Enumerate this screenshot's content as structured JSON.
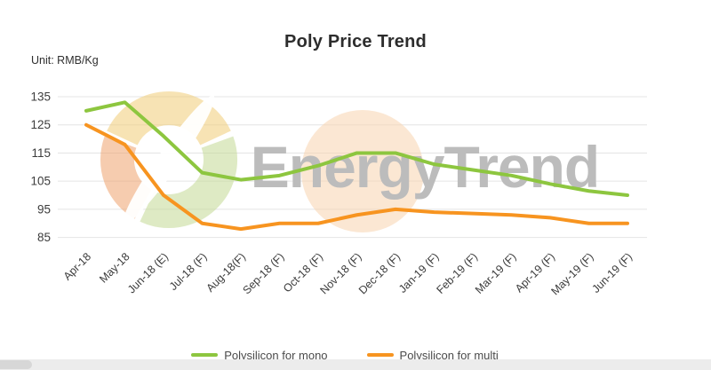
{
  "header": {
    "title": "Poly Price Trend",
    "unit_label": "Unit: RMB/Kg"
  },
  "watermark": {
    "text": "EnergyTrend",
    "text_color": "#bcbcbc",
    "logo_colors": {
      "yellow": "#f1cc76",
      "green": "#c2d893",
      "orange": "#eea26d",
      "disc_peach": "#f8d3ae"
    }
  },
  "chart_data": {
    "type": "line",
    "title": "Poly Price Trend",
    "unit": "RMB/Kg",
    "categories": [
      "Apr-18",
      "May-18",
      "Jun-18 (E)",
      "Jul-18 (F)",
      "Aug-18(F)",
      "Sep-18 (F)",
      "Oct-18 (F)",
      "Nov-18 (F)",
      "Dec-18 (F)",
      "Jan-19 (F)",
      "Feb-19 (F)",
      "Mar-19 (F)",
      "Apr-19 (F)",
      "May-19 (F)",
      "Jun-19 (F)"
    ],
    "series": [
      {
        "name": "Polysilicon for mono",
        "color": "#8dc63f",
        "values": [
          130,
          133,
          121,
          108,
          105.5,
          107,
          110.5,
          115,
          115,
          111,
          109,
          107,
          104,
          101.5,
          100
        ]
      },
      {
        "name": "Polysilicon for multi",
        "color": "#f79420",
        "values": [
          125,
          118,
          100,
          90,
          88,
          90,
          90,
          93,
          95,
          94,
          93.5,
          93,
          92,
          90,
          90
        ]
      }
    ],
    "yticks": [
      135,
      125,
      115,
      105,
      95,
      85
    ],
    "ylim": [
      85,
      135
    ],
    "grid": true,
    "gridline_color": "#e4e4e4",
    "axis_text_color": "#3c3c3c",
    "legend_position": "bottom"
  }
}
